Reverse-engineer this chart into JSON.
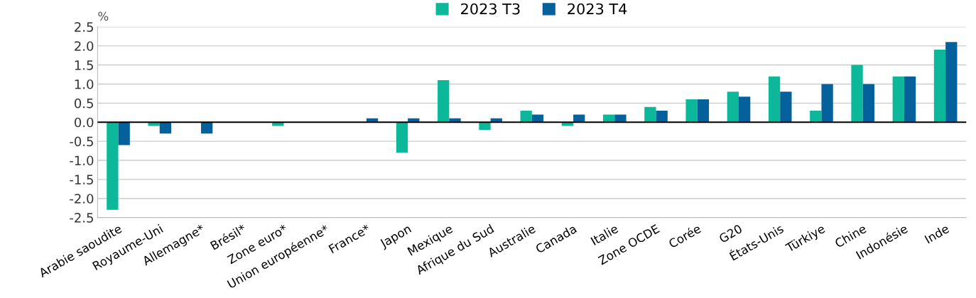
{
  "chart_data": {
    "type": "bar",
    "ylabel": "%",
    "categories": [
      "Arabie saoudite",
      "Royaume-Uni",
      "Allemagne*",
      "Brésil*",
      "Zone euro*",
      "Union européenne*",
      "France*",
      "Japon",
      "Mexique",
      "Afrique du Sud",
      "Australie",
      "Canada",
      "Italie",
      "Zone OCDE",
      "Corée",
      "G20",
      "États-Unis",
      "Türkiye",
      "Chine",
      "Indonésie",
      "Inde"
    ],
    "series": [
      {
        "name": "2023 T3",
        "color": "#0db89a",
        "values": [
          -2.3,
          -0.1,
          null,
          null,
          -0.1,
          null,
          null,
          -0.8,
          1.1,
          -0.2,
          0.3,
          -0.1,
          0.2,
          0.4,
          0.6,
          0.8,
          1.2,
          0.3,
          1.5,
          1.2,
          1.9
        ]
      },
      {
        "name": "2023 T4",
        "color": "#05619b",
        "values": [
          -0.6,
          -0.3,
          -0.3,
          null,
          null,
          null,
          0.1,
          0.1,
          0.1,
          0.1,
          0.2,
          0.2,
          0.2,
          0.3,
          0.6,
          0.67,
          0.8,
          1.0,
          1.0,
          1.2,
          2.1
        ]
      }
    ],
    "ylim": [
      -2.5,
      2.5
    ],
    "yticks": [
      {
        "value": -2.5,
        "label": "-2.5"
      },
      {
        "value": -2.0,
        "label": "-2.0"
      },
      {
        "value": -1.5,
        "label": "-1.5"
      },
      {
        "value": -1.0,
        "label": "-1.0"
      },
      {
        "value": -0.5,
        "label": "-0.5"
      },
      {
        "value": 0.0,
        "label": "0.0"
      },
      {
        "value": 0.5,
        "label": "0.5"
      },
      {
        "value": 1.0,
        "label": "1.0"
      },
      {
        "value": 1.5,
        "label": "1.5"
      },
      {
        "value": 2.0,
        "label": "2.0"
      },
      {
        "value": 2.5,
        "label": "2.5"
      }
    ],
    "grid": "y",
    "legend": "top"
  }
}
